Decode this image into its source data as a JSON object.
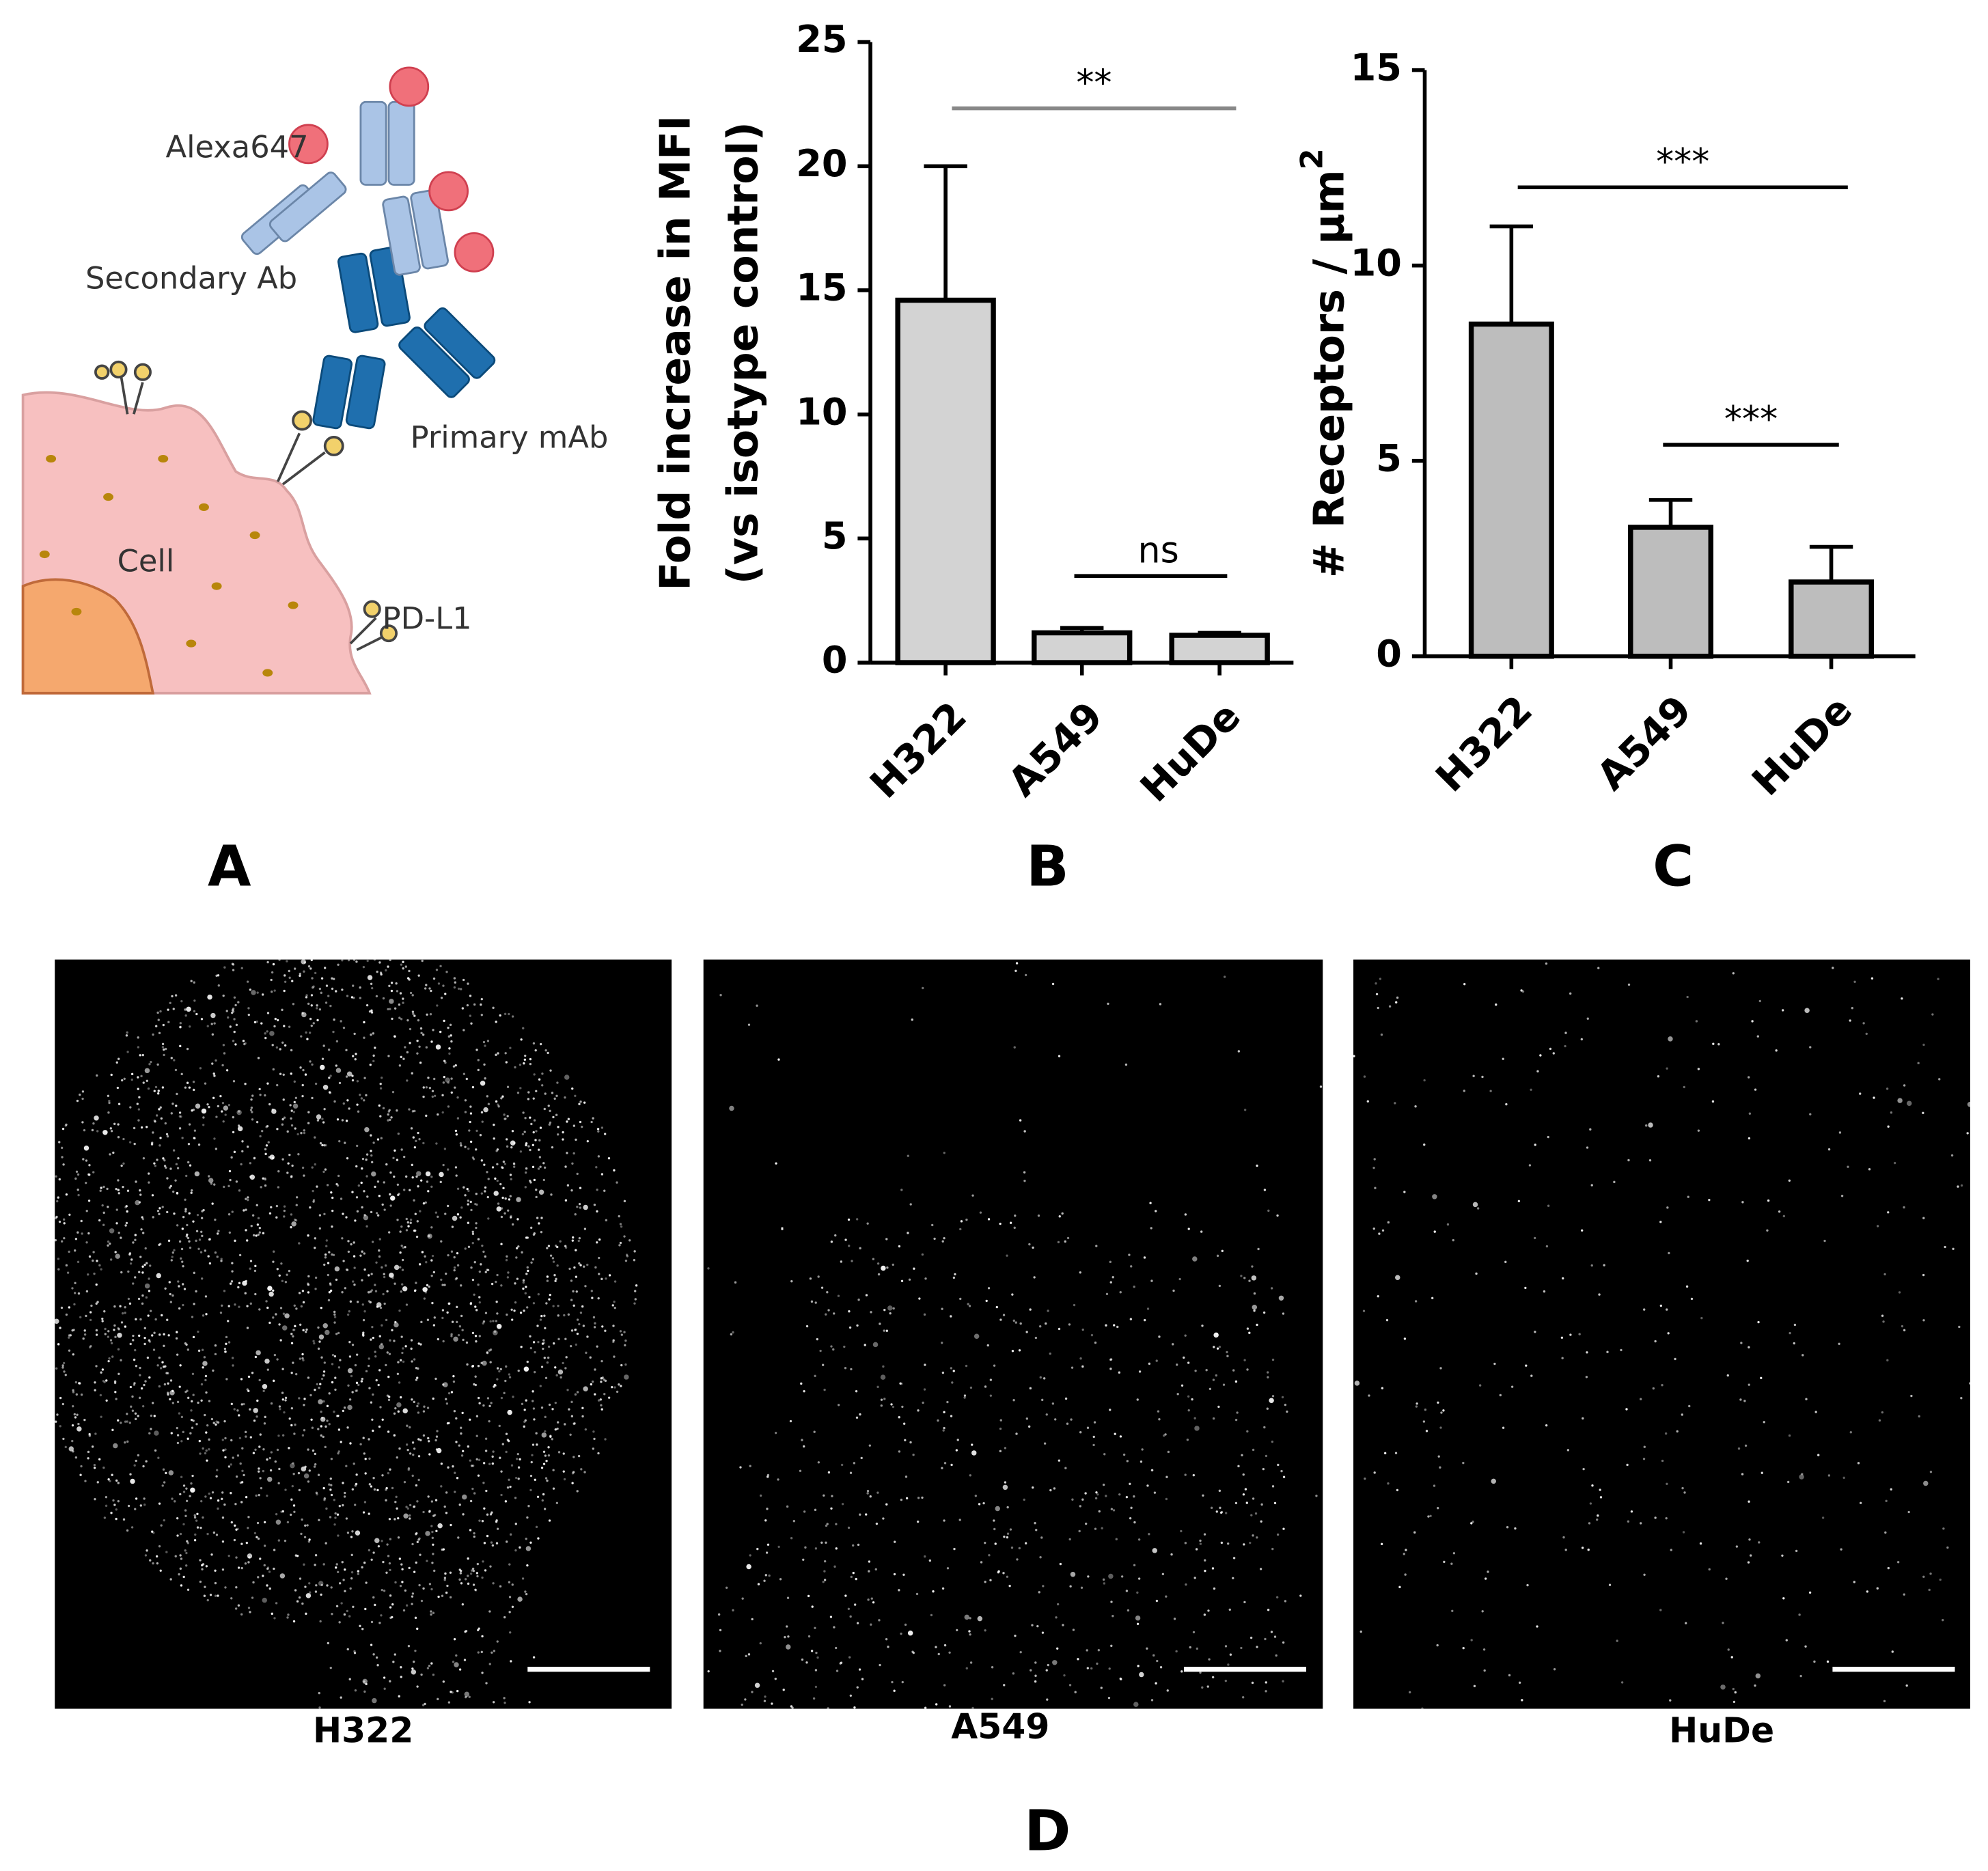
{
  "panel_labels": [
    "A",
    "B",
    "C",
    "D"
  ],
  "diagram": {
    "labels": [
      "Alexa647",
      "Secondary Ab",
      "Primary mAb",
      "Cell",
      "PD-L1"
    ]
  },
  "chart_data": [
    {
      "type": "bar",
      "y_label": [
        "Fold increase in MFI",
        "(vs isotype control)"
      ],
      "categories": [
        "H322",
        "A549",
        "HuDe"
      ],
      "values": [
        14.6,
        1.2,
        1.1
      ],
      "errors": [
        5.4,
        0.2,
        0.1
      ],
      "color": "#d3d3d3",
      "ylim": [
        0,
        25
      ],
      "yticks": [
        0,
        5,
        10,
        15,
        20,
        25
      ],
      "significance": [
        {
          "label": "**",
          "from": 0,
          "to": 2,
          "color": "#888888"
        },
        {
          "label": "ns",
          "from": 1,
          "to": 2,
          "color": "#000000"
        }
      ]
    },
    {
      "type": "bar",
      "y_label": [
        "# Receptors / µm"
      ],
      "y_label_sup": "2",
      "categories": [
        "H322",
        "A549",
        "HuDe"
      ],
      "values": [
        8.5,
        3.3,
        1.9
      ],
      "errors": [
        2.5,
        0.7,
        0.9
      ],
      "color": "#bdbdbd",
      "ylim": [
        0,
        15
      ],
      "yticks": [
        0,
        5,
        10,
        15
      ],
      "significance": [
        {
          "label": "***",
          "from": 0,
          "to": 2,
          "color": "#000000"
        },
        {
          "label": "***",
          "from": 1,
          "to": 2,
          "color": "#000000"
        }
      ]
    }
  ],
  "images": {
    "labels": [
      "H322",
      "A549",
      "HuDe"
    ]
  }
}
